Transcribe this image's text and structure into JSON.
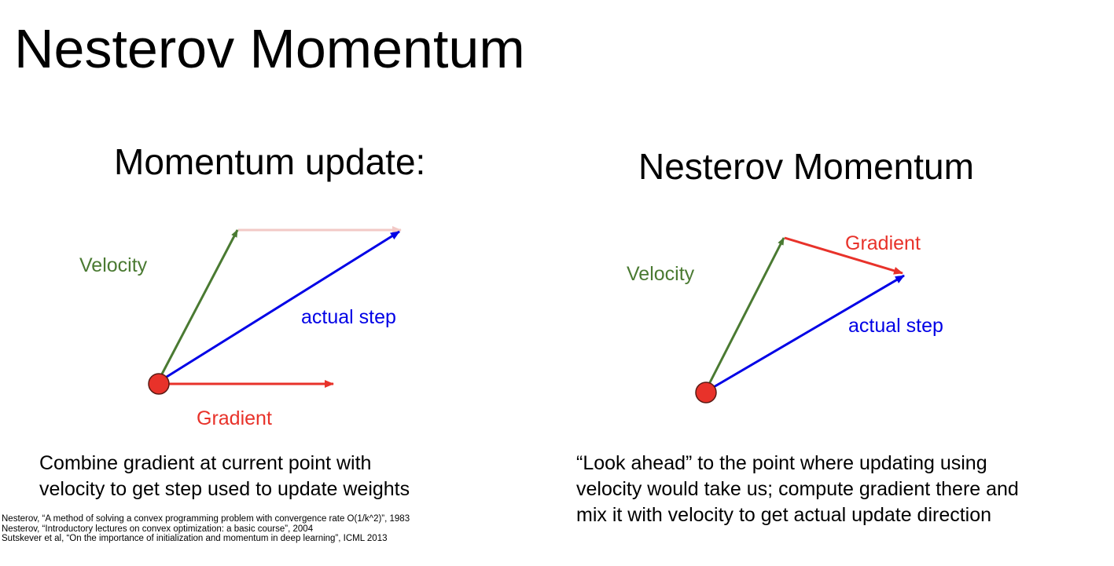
{
  "slide": {
    "title": "Nesterov Momentum"
  },
  "left_panel": {
    "title": "Momentum update:",
    "labels": {
      "velocity": "Velocity",
      "actual_step": "actual step",
      "gradient": "Gradient"
    },
    "caption_lines": [
      "Combine gradient at current point with",
      "velocity to get step used to update weights"
    ]
  },
  "right_panel": {
    "title": "Nesterov Momentum",
    "labels": {
      "velocity": "Velocity",
      "gradient": "Gradient",
      "actual_step": "actual step"
    },
    "caption_lines": [
      "“Look ahead” to the point where updating using",
      "velocity would take us; compute gradient there and",
      "mix it with velocity to get actual update direction"
    ]
  },
  "references": [
    "Nesterov, “A method of solving a convex programming problem with convergence rate O(1/k^2)”, 1983",
    "Nesterov, “Introductory lectures on convex optimization: a basic course”, 2004",
    "Sutskever et al, “On the importance of initialization and momentum in deep learning”, ICML 2013"
  ],
  "colors": {
    "velocity": "#4a7a32",
    "gradient": "#e8322a",
    "gradient_faded": "#f2c9c6",
    "actual_step": "#0000e6",
    "point_fill": "#e8322a",
    "point_stroke": "#5a1a14"
  }
}
